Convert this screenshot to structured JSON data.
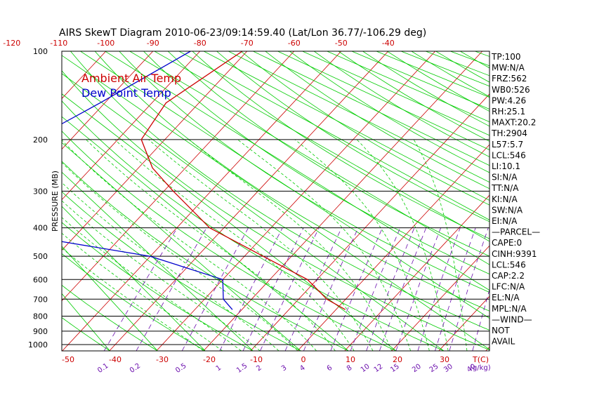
{
  "chart_data": {
    "type": "line",
    "title": "AIRS SkewT Diagram 2010-06-23/09:14:59.40 (Lat/Lon 36.77/-106.29 deg)",
    "ylabel": "PRESSURE (MB)",
    "xlabel": "T(C)",
    "mixing_ratio_unit": "(g/kg)",
    "y_scale": "log",
    "ylim": [
      1000,
      100
    ],
    "pressure_ticks": [
      "100",
      "200",
      "300",
      "400",
      "500",
      "600",
      "700",
      "800",
      "900",
      "1000"
    ],
    "bottom_temp_ticks": [
      "-50",
      "-40",
      "-30",
      "-20",
      "-10",
      "0",
      "10",
      "20",
      "30"
    ],
    "top_temp_ticks": [
      "-120",
      "-110",
      "-100",
      "-90",
      "-80",
      "-70",
      "-60",
      "-50",
      "-40"
    ],
    "mixing_ratio_ticks": [
      "0.1",
      "0.2",
      "0.5",
      "1",
      "1.5",
      "2",
      "3",
      "4",
      "6",
      "8",
      "10",
      "12",
      "15",
      "20",
      "25",
      "30",
      "40"
    ],
    "legend": {
      "placement": "top-left",
      "entries": [
        {
          "label": "Ambient Air Temp",
          "color": "#cc0000"
        },
        {
          "label": "Dew Point Temp",
          "color": "#0000cc"
        }
      ]
    },
    "series": [
      {
        "name": "Ambient Air Temp",
        "color": "#cc0000",
        "points": [
          {
            "p": 100,
            "t": -71
          },
          {
            "p": 150,
            "t": -77
          },
          {
            "p": 200,
            "t": -75
          },
          {
            "p": 250,
            "t": -67
          },
          {
            "p": 300,
            "t": -58
          },
          {
            "p": 400,
            "t": -43
          },
          {
            "p": 500,
            "t": -26
          },
          {
            "p": 600,
            "t": -12
          },
          {
            "p": 700,
            "t": -4
          },
          {
            "p": 760,
            "t": 2
          }
        ]
      },
      {
        "name": "Dew Point Temp",
        "color": "#0000cc",
        "points": [
          {
            "p": 100,
            "t": -82
          },
          {
            "p": 150,
            "t": -91
          },
          {
            "p": 200,
            "t": -98
          },
          {
            "p": 250,
            "t": -100
          },
          {
            "p": 300,
            "t": -105
          },
          {
            "p": 400,
            "t": -92
          },
          {
            "p": 500,
            "t": -50
          },
          {
            "p": 600,
            "t": -30
          },
          {
            "p": 700,
            "t": -26
          },
          {
            "p": 760,
            "t": -22
          }
        ]
      }
    ],
    "colors": {
      "isotherm": "#cc0000",
      "dry_adiabat": "#00cc00",
      "moist_adiabat": "#00cc00",
      "mixing_ratio": "#6a0dad",
      "isobar": "#000000"
    }
  },
  "indices": [
    "TP:100",
    "MW:N/A",
    "FRZ:562",
    "WB0:526",
    "PW:4.26",
    "RH:25.1",
    "MAXT:20.2",
    "TH:2904",
    "L57:5.7",
    "LCL:546",
    "LI:10.1",
    "SI:N/A",
    "TT:N/A",
    "KI:N/A",
    "SW:N/A",
    "EI:N/A",
    "—PARCEL—",
    "CAPE:0",
    "CINH:9391",
    "LCL:546",
    "CAP:2.2",
    "LFC:N/A",
    "EL:N/A",
    "MPL:N/A",
    "—WIND—",
    "NOT",
    "AVAIL"
  ]
}
